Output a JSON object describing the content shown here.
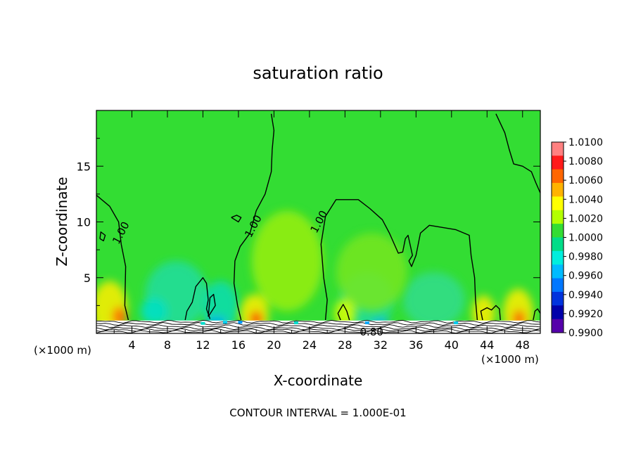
{
  "chart_data": {
    "type": "heatmap",
    "title": "saturation ratio",
    "xlabel": "X-coordinate",
    "ylabel": "Z-coordinate",
    "x_unit_left": "(×1000 m)",
    "x_unit_right": "(×1000 m)",
    "xlim": [
      0,
      50
    ],
    "ylim": [
      0,
      20
    ],
    "x_ticks": [
      4,
      8,
      12,
      16,
      20,
      24,
      28,
      32,
      36,
      40,
      44,
      48
    ],
    "y_ticks": [
      5,
      10,
      15
    ],
    "footer": "CONTOUR INTERVAL = 1.000E-01",
    "colorbar": {
      "labels": [
        "1.0100",
        "1.0080",
        "1.0060",
        "1.0040",
        "1.0020",
        "1.0000",
        "0.9980",
        "0.9960",
        "0.9940",
        "0.9920",
        "0.9900"
      ],
      "colors": [
        "#ff8080",
        "#ff1a1a",
        "#ff6600",
        "#ffb300",
        "#ffff00",
        "#b3ff00",
        "#33dd33",
        "#00dd88",
        "#00eedd",
        "#00bbff",
        "#0077ff",
        "#0033dd",
        "#0000aa",
        "#5500aa"
      ]
    },
    "background_value": 1.0,
    "background_color": "#33dd33",
    "contour_labels": [
      {
        "text": "1.00",
        "x": 2.8,
        "z": 9.0
      },
      {
        "text": "1.00",
        "x": 17.7,
        "z": 9.6
      },
      {
        "text": "1.00",
        "x": 25.1,
        "z": 10.0
      },
      {
        "text": "0.80",
        "x": 31.0,
        "z": 0.1
      }
    ],
    "contours_1_00": [
      [
        [
          0.0,
          12.4
        ],
        [
          1.5,
          11.4
        ],
        [
          2.5,
          10.0
        ],
        [
          2.8,
          8.0
        ],
        [
          3.3,
          6.0
        ],
        [
          3.2,
          2.5
        ],
        [
          3.6,
          1.2
        ]
      ],
      [
        [
          19.7,
          19.7
        ],
        [
          20.0,
          18.2
        ],
        [
          19.8,
          16.5
        ],
        [
          19.7,
          14.5
        ],
        [
          19.0,
          12.5
        ],
        [
          18.0,
          11.0
        ],
        [
          17.3,
          9.0
        ],
        [
          16.2,
          7.8
        ],
        [
          15.6,
          6.5
        ],
        [
          15.5,
          4.5
        ],
        [
          15.9,
          2.5
        ],
        [
          16.3,
          1.2
        ]
      ],
      [
        [
          25.8,
          1.2
        ],
        [
          26.0,
          3.0
        ],
        [
          25.6,
          5.0
        ],
        [
          25.3,
          8.0
        ],
        [
          25.8,
          10.5
        ],
        [
          27.0,
          12.0
        ],
        [
          29.5,
          12.0
        ],
        [
          30.8,
          11.2
        ],
        [
          32.2,
          10.2
        ],
        [
          33.0,
          9.0
        ],
        [
          34.0,
          7.2
        ],
        [
          34.5,
          7.3
        ],
        [
          34.8,
          8.5
        ],
        [
          35.1,
          8.8
        ],
        [
          35.6,
          7.0
        ],
        [
          35.2,
          6.5
        ],
        [
          35.5,
          6.0
        ],
        [
          36.0,
          7.0
        ],
        [
          36.5,
          9.0
        ],
        [
          37.5,
          9.7
        ],
        [
          39.0,
          9.5
        ],
        [
          40.5,
          9.3
        ],
        [
          42.0,
          8.8
        ],
        [
          42.2,
          7.0
        ],
        [
          42.6,
          5.0
        ],
        [
          42.7,
          3.0
        ],
        [
          42.9,
          1.2
        ]
      ],
      [
        [
          45.0,
          19.7
        ],
        [
          46.0,
          18.0
        ],
        [
          46.5,
          16.5
        ],
        [
          47.0,
          15.2
        ],
        [
          48.0,
          15.0
        ],
        [
          49.0,
          14.5
        ],
        [
          49.5,
          13.5
        ],
        [
          50.0,
          12.6
        ]
      ],
      [
        [
          10.0,
          1.2
        ],
        [
          10.2,
          2.0
        ],
        [
          10.8,
          2.8
        ],
        [
          11.2,
          4.2
        ],
        [
          12.0,
          5.0
        ],
        [
          12.4,
          4.5
        ],
        [
          12.6,
          3.0
        ],
        [
          12.4,
          2.2
        ],
        [
          12.8,
          1.3
        ]
      ],
      [
        [
          12.6,
          1.5
        ],
        [
          13.4,
          2.5
        ],
        [
          13.2,
          3.5
        ],
        [
          12.8,
          3.2
        ],
        [
          12.6,
          1.5
        ]
      ],
      [
        [
          27.5,
          1.2
        ],
        [
          27.2,
          1.8
        ],
        [
          27.8,
          2.6
        ],
        [
          28.2,
          2.0
        ],
        [
          28.5,
          1.2
        ]
      ],
      [
        [
          15.2,
          10.4
        ],
        [
          15.8,
          10.6
        ],
        [
          16.3,
          10.4
        ],
        [
          16.0,
          10.0
        ],
        [
          15.2,
          10.4
        ]
      ],
      [
        [
          0.4,
          8.5
        ],
        [
          0.8,
          8.3
        ],
        [
          1.0,
          8.8
        ],
        [
          0.5,
          9.1
        ],
        [
          0.4,
          8.5
        ]
      ],
      [
        [
          43.5,
          1.2
        ],
        [
          43.3,
          2.0
        ],
        [
          44.0,
          2.3
        ],
        [
          44.5,
          2.1
        ],
        [
          45.0,
          2.5
        ],
        [
          45.4,
          2.2
        ],
        [
          45.5,
          1.2
        ]
      ],
      [
        [
          49.2,
          1.2
        ],
        [
          49.4,
          2.0
        ],
        [
          49.7,
          2.2
        ],
        [
          50.0,
          1.8
        ]
      ]
    ],
    "warm_spots": [
      {
        "x": 1.5,
        "z": 2.2,
        "rx": 2.0,
        "rz": 2.5,
        "color": "#ffee00"
      },
      {
        "x": 2.6,
        "z": 1.5,
        "rx": 0.8,
        "rz": 0.9,
        "color": "#ff6600"
      },
      {
        "x": 17.8,
        "z": 1.7,
        "rx": 1.6,
        "rz": 1.8,
        "color": "#ffee00"
      },
      {
        "x": 18.0,
        "z": 1.3,
        "rx": 0.7,
        "rz": 0.7,
        "color": "#ff3300"
      },
      {
        "x": 28.0,
        "z": 1.8,
        "rx": 1.2,
        "rz": 1.3,
        "color": "#ddff00"
      },
      {
        "x": 43.6,
        "z": 1.8,
        "rx": 1.3,
        "rz": 1.6,
        "color": "#ffee00"
      },
      {
        "x": 47.5,
        "z": 1.8,
        "rx": 1.7,
        "rz": 2.2,
        "color": "#ffee00"
      },
      {
        "x": 47.6,
        "z": 1.3,
        "rx": 0.7,
        "rz": 0.8,
        "color": "#ff5500"
      },
      {
        "x": 21.5,
        "z": 6.5,
        "rx": 4.0,
        "rz": 4.5,
        "color": "#99ee11"
      },
      {
        "x": 31.0,
        "z": 5.5,
        "rx": 4.0,
        "rz": 3.5,
        "color": "#77e622"
      }
    ],
    "cool_spots": [
      {
        "x": 9.0,
        "z": 3.5,
        "rx": 3.5,
        "rz": 3.0,
        "color": "#22dd99"
      },
      {
        "x": 14.0,
        "z": 2.5,
        "rx": 2.0,
        "rz": 2.2,
        "color": "#11ddaa"
      },
      {
        "x": 30.5,
        "z": 3.0,
        "rx": 3.0,
        "rz": 2.5,
        "color": "#22dd99"
      },
      {
        "x": 38.0,
        "z": 3.0,
        "rx": 3.5,
        "rz": 2.5,
        "color": "#33dd88"
      },
      {
        "x": 6.5,
        "z": 2.0,
        "rx": 1.5,
        "rz": 1.2,
        "color": "#00e0cc"
      },
      {
        "x": 13.5,
        "z": 1.1,
        "rx": 1.2,
        "rz": 0.4,
        "color": "#00aaff"
      },
      {
        "x": 32.0,
        "z": 1.0,
        "rx": 1.0,
        "rz": 0.3,
        "color": "#00aaff"
      }
    ]
  }
}
